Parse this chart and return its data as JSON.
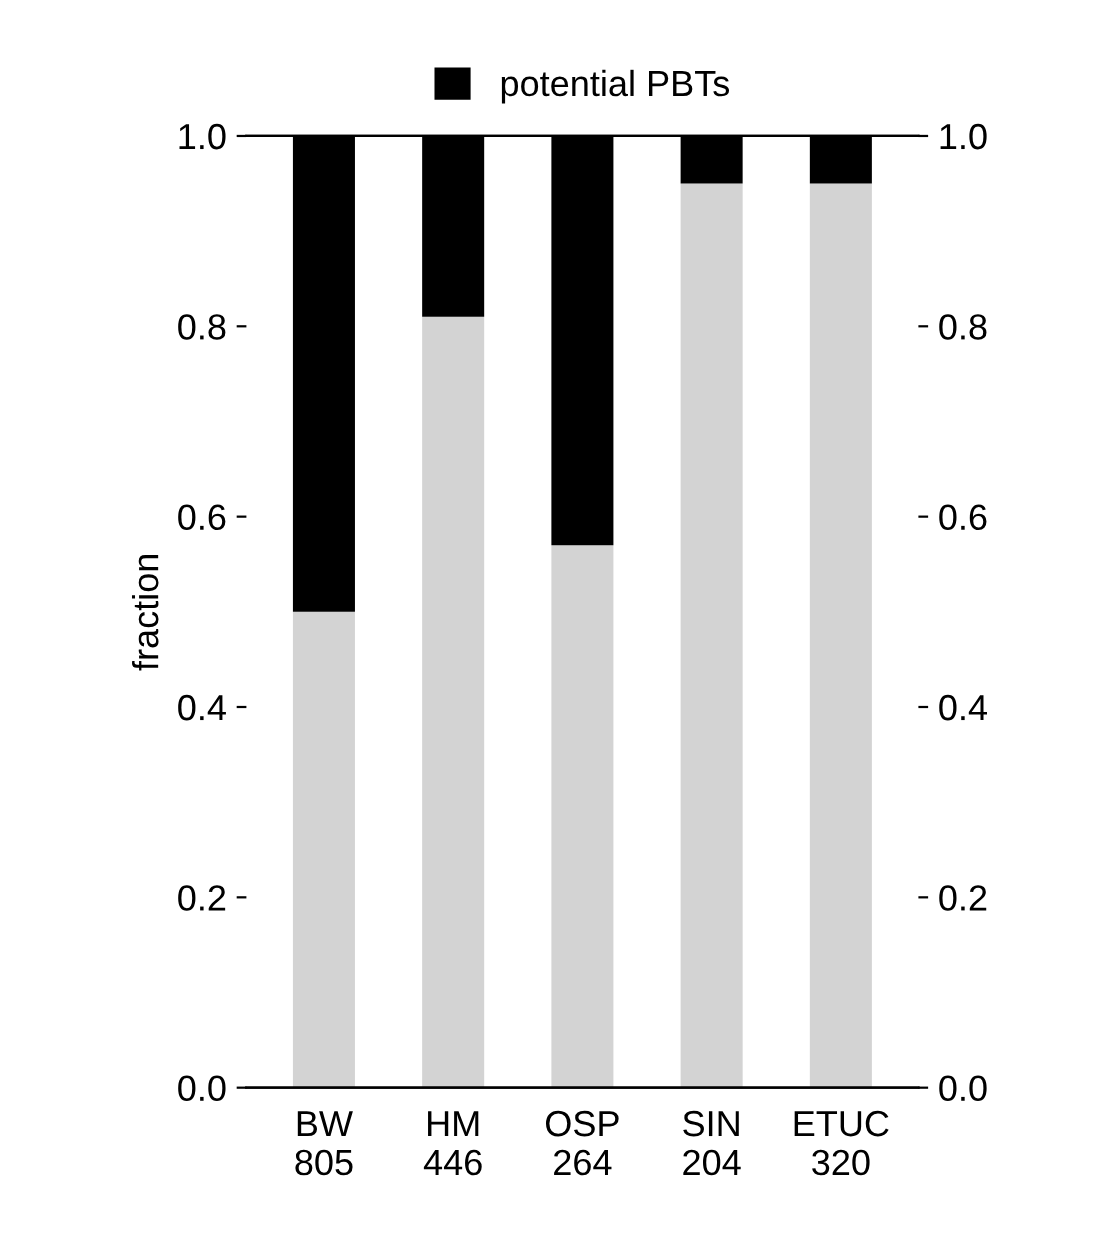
{
  "chart_data": {
    "type": "bar",
    "stacked": true,
    "ylabel": "fraction",
    "categories": [
      "BW\n805",
      "HM\n446",
      "OSP\n264",
      "SIN\n204",
      "ETUC\n320"
    ],
    "series": [
      {
        "color": "#d3d3d3",
        "values": [
          0.5,
          0.81,
          0.57,
          0.95,
          0.95
        ]
      },
      {
        "name": "potential PBTs",
        "color": "#000000",
        "values": [
          0.5,
          0.19,
          0.43,
          0.05,
          0.05
        ]
      }
    ],
    "ylim": [
      0,
      1
    ],
    "yticks": [
      {
        "value": 0,
        "label": "0.0"
      },
      0.2,
      0.4,
      0.6,
      0.8,
      {
        "value": 1,
        "label": "1.0"
      }
    ],
    "y2lim": [
      0,
      1
    ],
    "y2ticks": [
      {
        "value": 0,
        "label": "0.0"
      },
      0.2,
      0.4,
      0.6,
      0.8,
      {
        "value": 1,
        "label": "1.0"
      }
    ],
    "legend": "top",
    "grid": false
  }
}
